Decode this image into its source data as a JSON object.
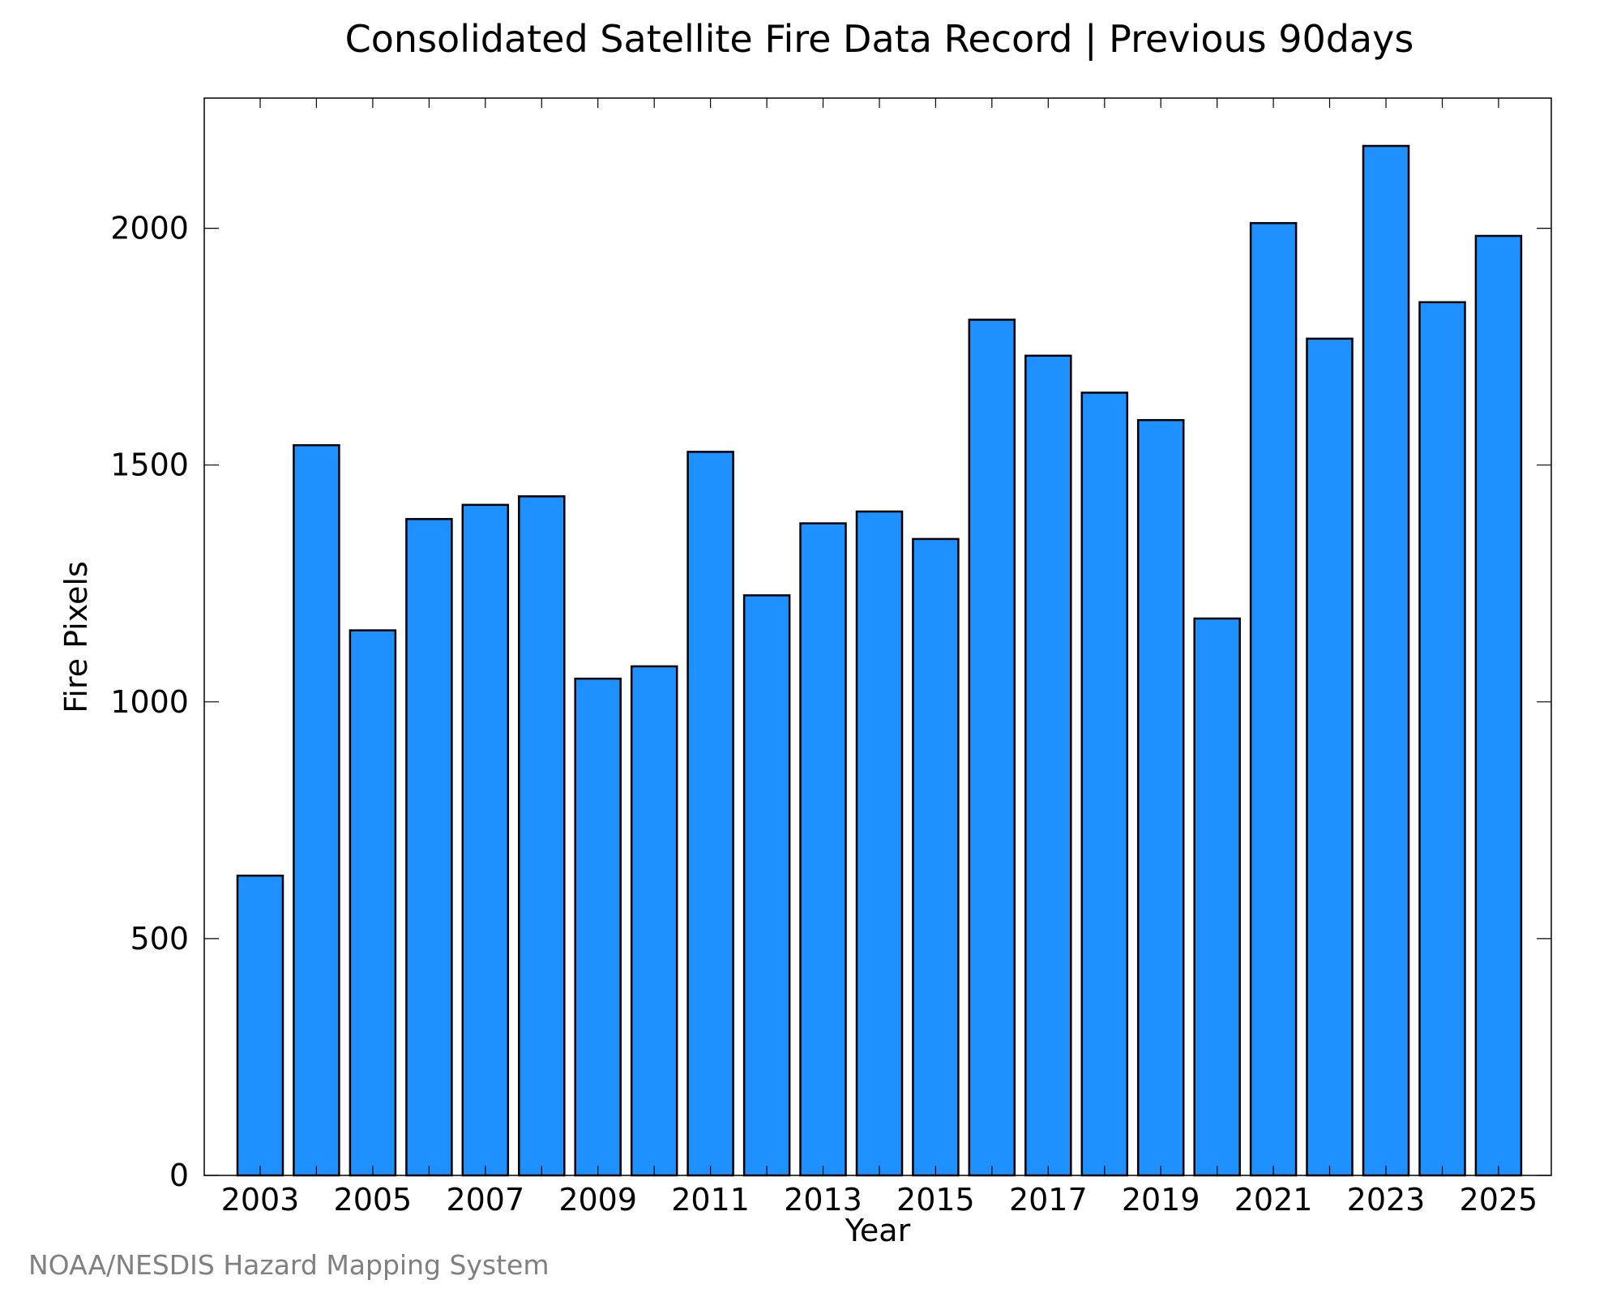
{
  "chart_data": {
    "type": "bar",
    "title": "Consolidated Satellite Fire Data Record | Previous 90days",
    "xlabel": "Year",
    "ylabel": "Fire Pixels",
    "categories": [
      "2003",
      "2004",
      "2005",
      "2006",
      "2007",
      "2008",
      "2009",
      "2010",
      "2011",
      "2012",
      "2013",
      "2014",
      "2015",
      "2016",
      "2017",
      "2018",
      "2019",
      "2020",
      "2021",
      "2022",
      "2023",
      "2024",
      "2025"
    ],
    "values": [
      633,
      1542,
      1151,
      1386,
      1416,
      1434,
      1049,
      1075,
      1528,
      1225,
      1377,
      1402,
      1344,
      1807,
      1731,
      1653,
      1595,
      1176,
      2011,
      1767,
      2174,
      1844,
      1984
    ],
    "x_tick_labels": [
      "2003",
      "2005",
      "2007",
      "2009",
      "2011",
      "2013",
      "2015",
      "2017",
      "2019",
      "2021",
      "2023",
      "2025"
    ],
    "y_tick_labels": [
      "0",
      "500",
      "1000",
      "1500",
      "2000"
    ],
    "y_ticks": [
      0,
      500,
      1000,
      1500,
      2000
    ],
    "ylim": [
      0,
      2275
    ],
    "grid": false,
    "bar_color": "#1e90ff",
    "bar_edge_color": "#000000"
  },
  "credit": "NOAA/NESDIS Hazard Mapping System"
}
